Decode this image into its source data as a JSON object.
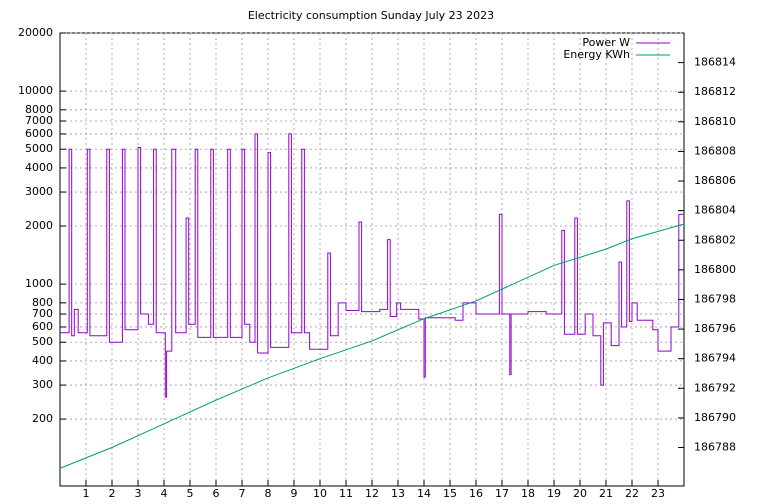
{
  "chart_data": {
    "type": "line",
    "title": "Electricity consumption Sunday July 23 2023",
    "xlim": [
      0,
      24
    ],
    "xticks": [
      1,
      2,
      3,
      4,
      5,
      6,
      7,
      8,
      9,
      10,
      11,
      12,
      13,
      14,
      15,
      16,
      17,
      18,
      19,
      20,
      21,
      22,
      23
    ],
    "ylim": [
      90,
      20000
    ],
    "ylog": true,
    "yticks": [
      200,
      300,
      400,
      500,
      600,
      700,
      800,
      1000,
      2000,
      3000,
      4000,
      5000,
      6000,
      7000,
      8000,
      10000,
      20000
    ],
    "y2lim": [
      186785.4,
      186816
    ],
    "y2ticks": [
      186788,
      186790,
      186792,
      186794,
      186796,
      186798,
      186800,
      186802,
      186804,
      186806,
      186808,
      186810,
      186812,
      186814
    ],
    "grid": true,
    "legend": "top-right",
    "step": true,
    "series": [
      {
        "name": "Power W",
        "color": "#9400d3",
        "x": [
          0,
          0.35,
          0.45,
          0.55,
          0.7,
          1.05,
          1.15,
          1.8,
          1.9,
          2.4,
          2.5,
          3.0,
          3.1,
          3.4,
          3.6,
          3.7,
          4.05,
          4.1,
          4.3,
          4.45,
          4.85,
          4.95,
          5.2,
          5.3,
          5.8,
          5.9,
          6.45,
          6.55,
          7.0,
          7.1,
          7.3,
          7.5,
          7.6,
          8.0,
          8.1,
          8.8,
          8.9,
          9.3,
          9.4,
          9.6,
          10.3,
          10.4,
          10.7,
          11.0,
          11.5,
          11.6,
          12.3,
          12.6,
          12.7,
          12.95,
          13.1,
          13.8,
          14.0,
          14.05,
          15.2,
          15.5,
          15.8,
          16.0,
          16.9,
          17.0,
          17.3,
          17.35,
          18.0,
          18.7,
          19.3,
          19.4,
          19.8,
          19.9,
          20.2,
          20.5,
          20.8,
          20.9,
          21.2,
          21.5,
          21.6,
          21.8,
          21.9,
          22.0,
          22.2,
          22.8,
          23.0,
          23.5,
          23.8,
          24.0
        ],
        "values": [
          560,
          5000,
          540,
          740,
          560,
          5000,
          540,
          5000,
          500,
          5000,
          580,
          5100,
          700,
          620,
          5000,
          560,
          260,
          450,
          5000,
          560,
          2200,
          620,
          5000,
          530,
          5000,
          530,
          5000,
          530,
          5000,
          620,
          500,
          6000,
          440,
          4800,
          470,
          6000,
          560,
          5000,
          560,
          460,
          1450,
          540,
          800,
          730,
          2100,
          720,
          740,
          1700,
          680,
          800,
          740,
          660,
          330,
          670,
          650,
          800,
          800,
          700,
          2300,
          700,
          340,
          700,
          720,
          700,
          1900,
          550,
          2200,
          550,
          700,
          540,
          300,
          630,
          480,
          1300,
          600,
          2700,
          640,
          800,
          650,
          580,
          450,
          600,
          2300,
          2300
        ]
      },
      {
        "name": "Energy KWh",
        "color": "#009e73",
        "axis": "y2",
        "x": [
          0,
          2,
          4,
          6,
          8,
          10,
          12,
          14,
          16,
          17,
          19,
          21,
          22,
          24
        ],
        "values": [
          186786.6,
          186788.0,
          186789.6,
          186791.2,
          186792.7,
          186794.0,
          186795.2,
          186796.7,
          186797.9,
          186798.7,
          186800.3,
          186801.4,
          186802.1,
          186803.1
        ]
      }
    ]
  }
}
